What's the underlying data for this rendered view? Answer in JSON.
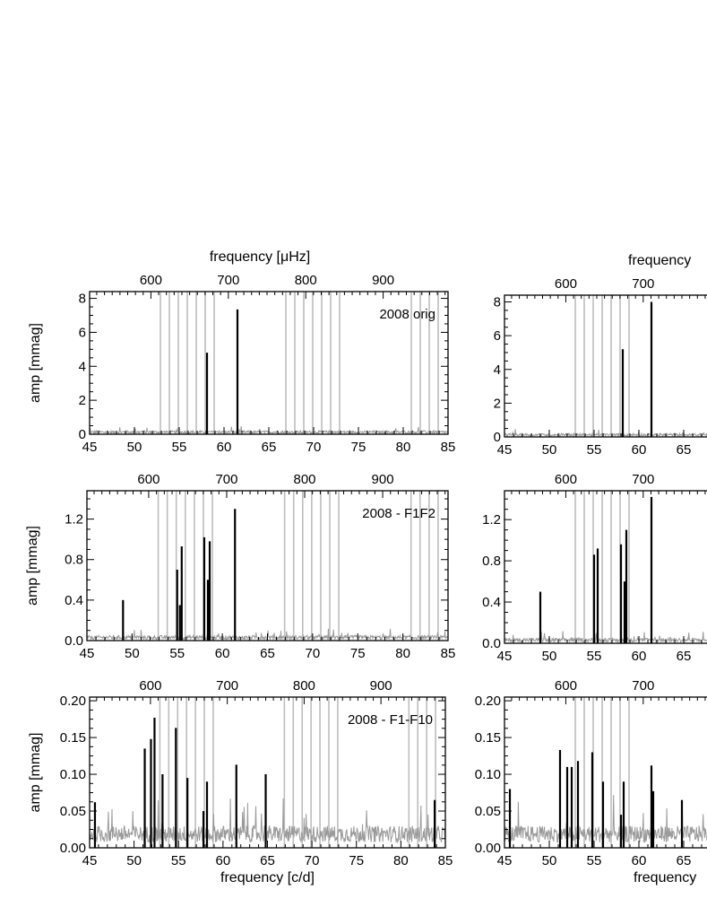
{
  "colors": {
    "observed": "#000000",
    "residual_noise": "#9a9a9a",
    "mode_markers": "#bdbdbd"
  },
  "chart_data": [
    {
      "type": "line",
      "annotation": "2008 orig",
      "ylabel": "amp [mmag]",
      "xlabel": "",
      "top_axis_label": "frequency [μHz]",
      "xlim": [
        45,
        85
      ],
      "ylim": [
        0,
        8.4
      ],
      "x_ticks": [
        45,
        50,
        55,
        60,
        65,
        70,
        75,
        80,
        85
      ],
      "y_ticks": [
        0,
        2,
        4,
        6,
        8
      ],
      "top_ticks": [
        600,
        700,
        800,
        900
      ],
      "top_range": [
        520.8,
        983.8
      ],
      "mode_lines": [
        52.9,
        53.9,
        54.9,
        55.9,
        56.9,
        57.9,
        58.9,
        66.9,
        67.9,
        68.9,
        69.9,
        70.9,
        71.9,
        72.9,
        80.9,
        81.9,
        82.9,
        83.9
      ],
      "peaks": [
        {
          "x": 58.1,
          "y": 4.8
        },
        {
          "x": 61.5,
          "y": 7.35
        }
      ],
      "noise_level": 0.2
    },
    {
      "type": "line",
      "annotation": "2008 - F1F2",
      "ylabel": "amp [mmag]",
      "xlabel": "",
      "top_axis_label": "",
      "xlim": [
        45,
        85
      ],
      "ylim": [
        0,
        1.48
      ],
      "x_ticks": [
        45,
        50,
        55,
        60,
        65,
        70,
        75,
        80,
        85
      ],
      "y_ticks": [
        0.0,
        0.4,
        0.8,
        1.2
      ],
      "top_ticks": [
        600,
        700,
        800,
        900
      ],
      "top_range": [
        520.8,
        983.8
      ],
      "mode_lines": [
        52.9,
        53.9,
        54.9,
        55.9,
        56.9,
        57.9,
        58.9,
        66.9,
        67.9,
        68.9,
        69.9,
        70.9,
        71.9,
        72.9,
        80.9,
        81.9,
        82.9,
        83.9
      ],
      "peaks": [
        {
          "x": 49.0,
          "y": 0.4
        },
        {
          "x": 55.0,
          "y": 0.7
        },
        {
          "x": 55.3,
          "y": 0.35
        },
        {
          "x": 55.5,
          "y": 0.93
        },
        {
          "x": 58.0,
          "y": 1.02
        },
        {
          "x": 58.4,
          "y": 0.6
        },
        {
          "x": 58.6,
          "y": 0.98
        },
        {
          "x": 61.4,
          "y": 1.3
        }
      ],
      "noise_level": 0.05
    },
    {
      "type": "line",
      "annotation": "2008 - F1-F10",
      "ylabel": "amp [mmag]",
      "xlabel": "frequency [c/d]",
      "top_axis_label": "",
      "xlim": [
        45,
        85
      ],
      "ylim": [
        0,
        0.205
      ],
      "x_ticks": [
        45,
        50,
        55,
        60,
        65,
        70,
        75,
        80,
        85
      ],
      "y_ticks": [
        0.0,
        0.05,
        0.1,
        0.15,
        0.2
      ],
      "top_ticks": [
        600,
        700,
        800,
        900
      ],
      "top_range": [
        520.8,
        983.8
      ],
      "mode_lines": [
        52.9,
        53.9,
        54.9,
        55.9,
        56.9,
        57.9,
        58.9,
        66.9,
        67.9,
        68.9,
        69.9,
        70.9,
        71.9,
        72.9,
        80.9,
        81.9,
        82.9,
        83.9
      ],
      "peaks": [
        {
          "x": 45.6,
          "y": 0.062
        },
        {
          "x": 51.2,
          "y": 0.135
        },
        {
          "x": 51.9,
          "y": 0.148
        },
        {
          "x": 52.3,
          "y": 0.177
        },
        {
          "x": 53.2,
          "y": 0.1
        },
        {
          "x": 54.7,
          "y": 0.163
        },
        {
          "x": 56.0,
          "y": 0.095
        },
        {
          "x": 57.8,
          "y": 0.05
        },
        {
          "x": 58.2,
          "y": 0.09
        },
        {
          "x": 61.5,
          "y": 0.113
        },
        {
          "x": 64.8,
          "y": 0.1
        },
        {
          "x": 83.8,
          "y": 0.065
        }
      ],
      "noise_level": 0.03
    },
    {
      "type": "line",
      "annotation": "",
      "ylabel": "",
      "xlabel": "",
      "top_axis_label": "frequency",
      "xlim": [
        45,
        85
      ],
      "ylim": [
        0,
        8.4
      ],
      "x_ticks": [
        45,
        50,
        55,
        60,
        65
      ],
      "y_ticks": [
        0,
        2,
        4,
        6,
        8
      ],
      "top_ticks": [
        600,
        700
      ],
      "top_range": [
        520.8,
        983.8
      ],
      "mode_lines": [
        52.9,
        53.9,
        54.9,
        55.9,
        56.9,
        57.9,
        58.9
      ],
      "peaks": [
        {
          "x": 58.2,
          "y": 5.2
        },
        {
          "x": 61.4,
          "y": 8.0
        }
      ],
      "noise_level": 0.2
    },
    {
      "type": "line",
      "annotation": "",
      "ylabel": "",
      "xlabel": "",
      "top_axis_label": "",
      "xlim": [
        45,
        85
      ],
      "ylim": [
        0,
        1.48
      ],
      "x_ticks": [
        45,
        50,
        55,
        60,
        65
      ],
      "y_ticks": [
        0.0,
        0.4,
        0.8,
        1.2
      ],
      "top_ticks": [
        600,
        700
      ],
      "top_range": [
        520.8,
        983.8
      ],
      "mode_lines": [
        52.9,
        53.9,
        54.9,
        55.9,
        56.9,
        57.9,
        58.9
      ],
      "peaks": [
        {
          "x": 49.0,
          "y": 0.5
        },
        {
          "x": 55.0,
          "y": 0.86
        },
        {
          "x": 55.4,
          "y": 0.92
        },
        {
          "x": 58.0,
          "y": 0.96
        },
        {
          "x": 58.4,
          "y": 0.6
        },
        {
          "x": 58.6,
          "y": 1.1
        },
        {
          "x": 61.4,
          "y": 1.42
        }
      ],
      "noise_level": 0.05
    },
    {
      "type": "line",
      "annotation": "",
      "ylabel": "",
      "xlabel": "frequency",
      "top_axis_label": "",
      "xlim": [
        45,
        85
      ],
      "ylim": [
        0,
        0.205
      ],
      "x_ticks": [
        45,
        50,
        55,
        60,
        65
      ],
      "y_ticks": [
        0.0,
        0.05,
        0.1,
        0.15,
        0.2
      ],
      "top_ticks": [
        600,
        700
      ],
      "top_range": [
        520.8,
        983.8
      ],
      "mode_lines": [
        52.9,
        53.9,
        54.9,
        55.9,
        56.9,
        57.9,
        58.9
      ],
      "peaks": [
        {
          "x": 45.6,
          "y": 0.08
        },
        {
          "x": 51.2,
          "y": 0.133
        },
        {
          "x": 52.0,
          "y": 0.11
        },
        {
          "x": 52.5,
          "y": 0.11
        },
        {
          "x": 53.2,
          "y": 0.118
        },
        {
          "x": 54.8,
          "y": 0.13
        },
        {
          "x": 56.0,
          "y": 0.09
        },
        {
          "x": 58.0,
          "y": 0.045
        },
        {
          "x": 58.3,
          "y": 0.09
        },
        {
          "x": 61.4,
          "y": 0.112
        },
        {
          "x": 61.6,
          "y": 0.077
        },
        {
          "x": 64.8,
          "y": 0.065
        }
      ],
      "noise_level": 0.03
    }
  ]
}
